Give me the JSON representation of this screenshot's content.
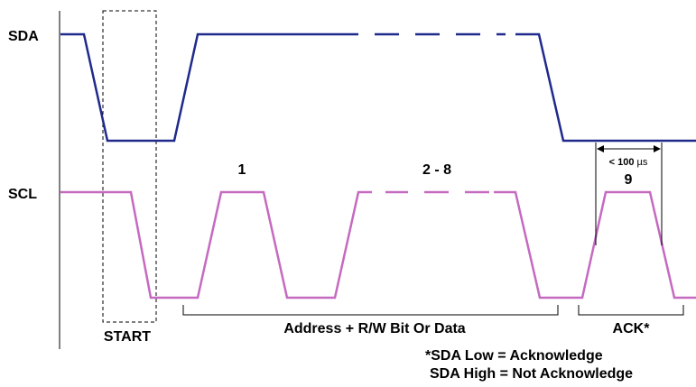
{
  "signals": {
    "sda": {
      "label": "SDA",
      "color": "#1f2a8c"
    },
    "scl": {
      "label": "SCL",
      "color": "#c56ac0"
    }
  },
  "phases": {
    "start": "START",
    "address": "Address + R/W Bit Or Data",
    "ack": "ACK*"
  },
  "clock_pulses": {
    "first": "1",
    "middle": "2 - 8",
    "ninth": "9"
  },
  "timing": {
    "label_prefix": "< 100 ",
    "unit": "µs"
  },
  "notes": {
    "line1": "*SDA Low = Acknowledge",
    "line2": "SDA High = Not Acknowledge"
  }
}
